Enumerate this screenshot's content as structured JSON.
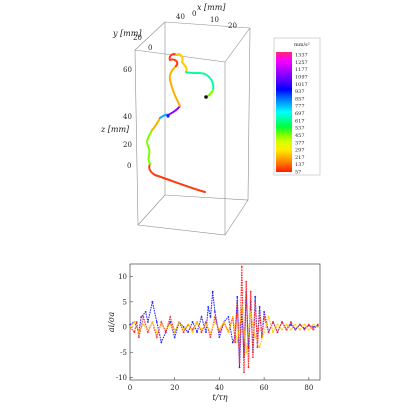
{
  "chart_data": [
    {
      "type": "line3d",
      "title": "",
      "axes": {
        "x": {
          "label": "x [mm]",
          "ticks": [
            40,
            0,
            10,
            20
          ]
        },
        "y": {
          "label": "y [mm]",
          "ticks": [
            20,
            0
          ]
        },
        "z": {
          "label": "z [mm]",
          "ticks": [
            60,
            40,
            20,
            0
          ]
        }
      },
      "colorbar": {
        "title": "mm/s²",
        "ticks": [
          1337,
          1257,
          1177,
          1097,
          1017,
          937,
          857,
          777,
          697,
          617,
          537,
          457,
          377,
          297,
          217,
          137,
          57
        ],
        "colors": [
          "#ff2a6a",
          "#ff00ff",
          "#c800ff",
          "#8a00ff",
          "#4a00ff",
          "#0000ff",
          "#0060ff",
          "#00b0ff",
          "#00ffff",
          "#00ff9a",
          "#00ff3a",
          "#7aff00",
          "#d8ff00",
          "#ffee00",
          "#ffb000",
          "#ff6a00",
          "#ff1a00"
        ]
      }
    },
    {
      "type": "line",
      "title": "",
      "xlabel": "t/τη",
      "ylabel": "ai/σa",
      "xlim": [
        0,
        85
      ],
      "ylim": [
        -10.5,
        12.5
      ],
      "xticks": [
        0,
        20,
        40,
        60,
        80
      ],
      "yticks": [
        -10,
        -5,
        0,
        5,
        10
      ],
      "series": [
        {
          "color": "#2a2aff",
          "x": [
            0,
            2,
            4,
            5,
            7,
            8,
            10,
            12,
            14,
            16,
            18,
            20,
            22,
            24,
            26,
            28,
            30,
            32,
            34,
            35,
            36,
            37,
            38,
            40,
            42,
            44,
            46,
            47,
            48,
            49,
            50,
            51,
            52,
            53,
            54,
            55,
            56,
            57,
            58,
            59,
            60,
            62,
            64,
            66,
            68,
            70,
            72,
            74,
            76,
            78,
            80,
            82,
            84
          ],
          "values": [
            0.5,
            1,
            -1,
            2,
            3,
            1,
            5,
            1,
            -3,
            -1,
            1,
            -2,
            1,
            0,
            -1,
            1,
            -1,
            2,
            -1,
            4,
            2,
            7,
            3,
            -2,
            1,
            2,
            -3,
            -2,
            6,
            -8,
            4,
            -6,
            7,
            -4,
            5,
            -5,
            6,
            -3,
            4,
            -2,
            3,
            -1,
            1,
            -1,
            1,
            -0.5,
            0.5,
            -0.5,
            0.5,
            -0.3,
            0.3,
            0,
            0.2
          ]
        },
        {
          "color": "#ff2a2a",
          "x": [
            0,
            2,
            3,
            4,
            6,
            8,
            10,
            12,
            14,
            16,
            18,
            20,
            22,
            24,
            26,
            28,
            30,
            32,
            34,
            36,
            38,
            40,
            42,
            44,
            46,
            47,
            48,
            49,
            50,
            51,
            52,
            53,
            54,
            55,
            56,
            57,
            58,
            59,
            60,
            62,
            64,
            66,
            68,
            70,
            72,
            74,
            76,
            78,
            80,
            82,
            84
          ],
          "values": [
            0,
            -1,
            1,
            -2,
            2,
            -1,
            1,
            -2,
            1,
            -1,
            2,
            -1,
            1,
            -1,
            0.5,
            -0.5,
            1,
            -1,
            1,
            -2,
            2,
            -1,
            1,
            -1,
            2,
            -3,
            5,
            -7,
            12,
            -9,
            9,
            -8,
            7,
            -6,
            5,
            -4,
            3,
            -2,
            2,
            -1,
            1,
            -1,
            1,
            -0.5,
            1,
            -0.5,
            0.5,
            -0.5,
            0.5,
            -0.5,
            0.5
          ]
        },
        {
          "color": "#ffcc00",
          "x": [
            0,
            2,
            4,
            6,
            8,
            10,
            12,
            14,
            16,
            18,
            20,
            22,
            24,
            26,
            28,
            30,
            32,
            34,
            36,
            38,
            40,
            42,
            44,
            46,
            48,
            50,
            52,
            54,
            56,
            58,
            60,
            62,
            64,
            66,
            68,
            70,
            72,
            74,
            76,
            78,
            80,
            82,
            84
          ],
          "values": [
            0,
            1,
            -1,
            0.5,
            -0.5,
            1,
            -1,
            0.5,
            -0.5,
            0.5,
            -1,
            1,
            -0.5,
            0.5,
            -1,
            1,
            -0.5,
            0.5,
            -1,
            1,
            -0.5,
            1,
            -1,
            2,
            -3,
            4,
            -5,
            3,
            -2,
            -4,
            -1,
            2,
            -1,
            0.5,
            -0.5,
            0.5,
            -0.5,
            0.5,
            -0.5,
            0.5,
            -0.5,
            0.5,
            0
          ]
        }
      ]
    }
  ]
}
